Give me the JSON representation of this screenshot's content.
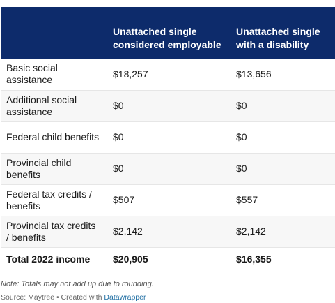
{
  "table": {
    "headers": [
      "",
      "Unattached single considered employable",
      "Unattached single with a disability"
    ],
    "rows": [
      {
        "label": "Basic social assistance",
        "employable": "$18,257",
        "disability": "$13,656"
      },
      {
        "label": "Additional social assistance",
        "employable": "$0",
        "disability": "$0"
      },
      {
        "label": "Federal child benefits",
        "employable": "$0",
        "disability": "$0"
      },
      {
        "label": "Provincial child benefits",
        "employable": "$0",
        "disability": "$0"
      },
      {
        "label": "Federal tax credits / benefits",
        "employable": "$507",
        "disability": "$557"
      },
      {
        "label": "Provincial tax credits / benefits",
        "employable": "$2,142",
        "disability": "$2,142"
      }
    ],
    "total": {
      "label": "Total 2022 income",
      "employable": "$20,905",
      "disability": "$16,355"
    }
  },
  "footer": {
    "note": "Note: Totals may not add up due to rounding.",
    "source_prefix": "Source: Maytree • Created with ",
    "source_link": "Datawrapper"
  },
  "colors": {
    "header_bg": "#0d2b6b",
    "link": "#1f6ea3"
  }
}
